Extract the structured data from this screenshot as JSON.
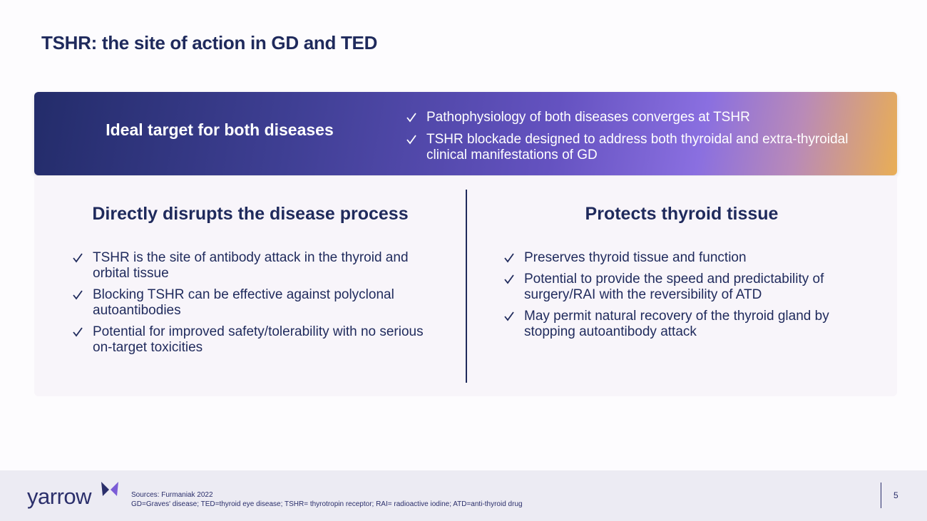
{
  "title": "TSHR: the site of action in GD and TED",
  "banner": {
    "heading": "Ideal target for both diseases",
    "bullets": [
      "Pathophysiology of both diseases converges at TSHR",
      "TSHR blockade designed to address both thyroidal and extra-thyroidal clinical manifestations of GD"
    ]
  },
  "left": {
    "heading": "Directly disrupts the disease process",
    "bullets": [
      "TSHR is the site of antibody attack in the thyroid and orbital tissue",
      "Blocking TSHR can be effective against polyclonal autoantibodies",
      "Potential for improved safety/tolerability with no serious on-target toxicities"
    ]
  },
  "right": {
    "heading": "Protects thyroid tissue",
    "bullets": [
      "Preserves thyroid tissue and function",
      "Potential to provide the speed and predictability of surgery/RAI with the reversibility of ATD",
      "May permit natural recovery of the thyroid gland by stopping autoantibody attack"
    ]
  },
  "footer": {
    "logo": "yarrow",
    "sources": [
      "Sources: Furmaniak 2022",
      "GD=Graves' disease; TED=thyroid eye disease; TSHR= thyrotropin receptor; RAI= radioactive iodine; ATD=anti-thyroid drug"
    ],
    "page": "5"
  }
}
